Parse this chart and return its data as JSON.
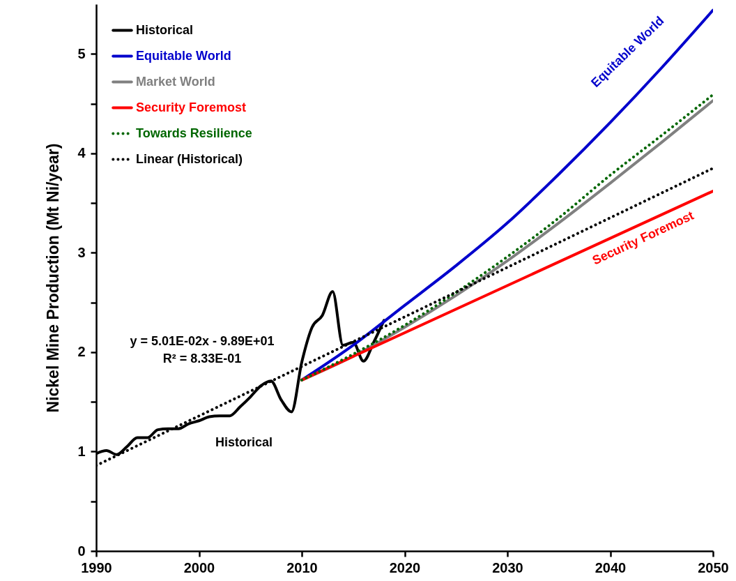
{
  "chart_data": {
    "type": "line",
    "ylabel": "Nickel Mine Production (Mt Ni/year)",
    "xlim": [
      1990,
      2050
    ],
    "xticks": [
      1990,
      2000,
      2010,
      2020,
      2030,
      2040,
      2050
    ],
    "ylim": [
      0,
      5.5
    ],
    "yticks": [
      0,
      {
        "value": 0.5,
        "label": null
      },
      1,
      {
        "value": 1.5,
        "label": null
      },
      2,
      {
        "value": 2.5,
        "label": null
      },
      3,
      {
        "value": 3.5,
        "label": null
      },
      4,
      {
        "value": 4.5,
        "label": null
      },
      5
    ],
    "legend": "top left",
    "series": [
      {
        "name": "Historical",
        "color": "#000000",
        "line_style": "solid",
        "x": [
          1990,
          1991,
          1992,
          1993,
          1994,
          1995,
          1996,
          1997,
          1998,
          1999,
          2000,
          2001,
          2002,
          2003,
          2004,
          2005,
          2006,
          2007,
          2008,
          2009,
          2010,
          2011,
          2012,
          2013,
          2014,
          2015,
          2016,
          2017,
          2018
        ],
        "values": [
          0.98,
          1.01,
          0.97,
          1.05,
          1.14,
          1.14,
          1.22,
          1.23,
          1.23,
          1.28,
          1.31,
          1.35,
          1.36,
          1.36,
          1.45,
          1.55,
          1.66,
          1.71,
          1.52,
          1.4,
          1.9,
          2.25,
          2.37,
          2.61,
          2.07,
          2.1,
          1.91,
          2.1,
          2.32
        ]
      },
      {
        "name": "Equitable World",
        "color": "#0000cc",
        "line_style": "solid",
        "x": [
          2010,
          2015,
          2020,
          2025,
          2030,
          2035,
          2040,
          2045,
          2050
        ],
        "values": [
          1.72,
          2.07,
          2.47,
          2.87,
          3.3,
          3.79,
          4.31,
          4.86,
          5.44
        ]
      },
      {
        "name": "Market World",
        "color": "#808080",
        "line_style": "solid",
        "x": [
          2010,
          2015,
          2020,
          2025,
          2030,
          2035,
          2040,
          2045,
          2050
        ],
        "values": [
          1.72,
          1.96,
          2.25,
          2.57,
          2.92,
          3.3,
          3.7,
          4.11,
          4.53
        ]
      },
      {
        "name": "Security Foremost",
        "color": "#ff0000",
        "line_style": "solid",
        "x": [
          2010,
          2050
        ],
        "values": [
          1.72,
          3.62
        ]
      },
      {
        "name": "Towards Resilience",
        "color": "#006600",
        "line_style": "dotted",
        "x": [
          2010,
          2015,
          2020,
          2025,
          2030,
          2035,
          2040,
          2045,
          2050
        ],
        "values": [
          1.72,
          1.98,
          2.27,
          2.6,
          2.96,
          3.35,
          3.78,
          4.18,
          4.59
        ]
      },
      {
        "name": "Linear (Historical)",
        "color": "#000000",
        "line_style": "dotted",
        "x": [
          1990,
          2050
        ],
        "values": [
          0.86,
          3.85
        ]
      }
    ],
    "annotations": [
      "y = 5.01E-02x - 9.89E+01",
      "R² = 8.33E-01",
      "Historical",
      "Equitable World",
      "Security Foremost"
    ]
  }
}
